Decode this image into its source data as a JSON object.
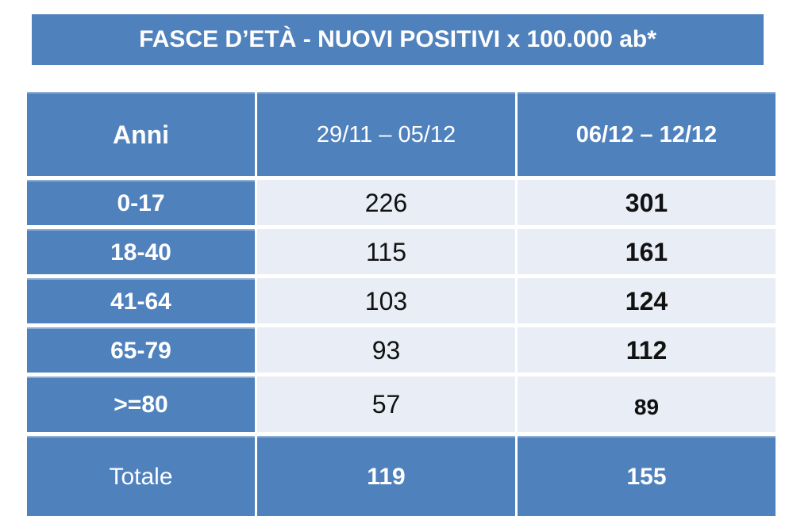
{
  "colors": {
    "accent": "#4F81BD",
    "light_cell": "#E9EDF5",
    "text_on_blue": "#FFFFFF",
    "text_on_light": "#111111"
  },
  "title": "FASCE D’ETÀ - NUOVI POSITIVI x 100.000 ab*",
  "table": {
    "columns": [
      {
        "label": "Anni"
      },
      {
        "label": "29/11 – 05/12"
      },
      {
        "label": "06/12 – 12/12"
      }
    ],
    "rows": [
      {
        "age": "0-17",
        "week1": "226",
        "week2": "301"
      },
      {
        "age": "18-40",
        "week1": "115",
        "week2": "161"
      },
      {
        "age": "41-64",
        "week1": "103",
        "week2": "124"
      },
      {
        "age": "65-79",
        "week1": "93",
        "week2": "112"
      },
      {
        "age": ">=80",
        "week1": "57",
        "week2": "89"
      }
    ],
    "total": {
      "label": "Totale",
      "week1": "119",
      "week2": "155"
    }
  },
  "chart_data": {
    "type": "table",
    "title": "FASCE D’ETÀ - NUOVI POSITIVI x 100.000 ab*",
    "columns": [
      "Anni",
      "29/11 – 05/12",
      "06/12 – 12/12"
    ],
    "rows": [
      [
        "0-17",
        226,
        301
      ],
      [
        "18-40",
        115,
        161
      ],
      [
        "41-64",
        103,
        124
      ],
      [
        "65-79",
        93,
        112
      ],
      [
        ">=80",
        57,
        89
      ],
      [
        "Totale",
        119,
        155
      ]
    ]
  }
}
